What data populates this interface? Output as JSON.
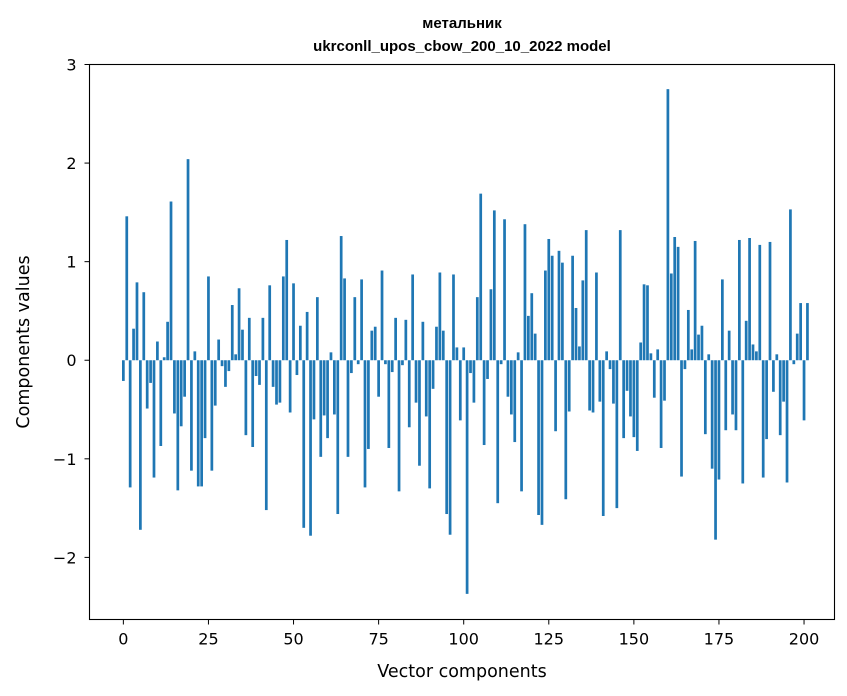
{
  "chart_data": {
    "type": "bar",
    "title_lines": [
      "метальник",
      "ukrconll_upos_cbow_200_10_2022 model"
    ],
    "xlabel": "Vector components",
    "ylabel": "Components values",
    "xlim": [
      -9.95,
      208.95
    ],
    "ylim": [
      -2.63,
      3.0
    ],
    "xticks": [
      0,
      25,
      50,
      75,
      100,
      125,
      150,
      175,
      200
    ],
    "xtick_labels": [
      "0",
      "25",
      "50",
      "75",
      "100",
      "125",
      "150",
      "175",
      "200"
    ],
    "yticks": [
      -2,
      -1,
      0,
      1,
      2,
      3
    ],
    "ytick_labels": [
      "−2",
      "−1",
      "0",
      "1",
      "2",
      "3"
    ],
    "grid": false,
    "bar_color": "#1f77b4",
    "x_start": 0,
    "values": [
      -0.21,
      1.46,
      -1.29,
      0.32,
      0.79,
      -1.72,
      0.69,
      -0.49,
      -0.23,
      -1.19,
      0.19,
      -0.87,
      0.03,
      0.39,
      1.61,
      -0.54,
      -1.32,
      -0.67,
      -0.37,
      2.04,
      -1.12,
      0.09,
      -1.28,
      -1.28,
      -0.79,
      0.85,
      -1.12,
      -0.46,
      0.21,
      -0.06,
      -0.27,
      -0.11,
      0.56,
      0.06,
      0.73,
      0.31,
      -0.76,
      0.43,
      -0.88,
      -0.16,
      -0.25,
      0.43,
      -1.52,
      0.76,
      -0.27,
      -0.45,
      -0.43,
      0.85,
      1.22,
      -0.53,
      0.78,
      -0.15,
      0.35,
      -1.7,
      0.49,
      -1.78,
      -0.6,
      0.64,
      -0.98,
      -0.56,
      -0.79,
      0.08,
      -0.55,
      -1.56,
      1.26,
      0.83,
      -0.98,
      -0.13,
      0.64,
      -0.04,
      0.82,
      -1.29,
      -0.9,
      0.3,
      0.34,
      -0.37,
      0.91,
      -0.04,
      -0.89,
      -0.12,
      0.43,
      -1.33,
      -0.05,
      0.41,
      -0.68,
      0.87,
      -0.43,
      -1.07,
      0.39,
      -0.57,
      -1.3,
      -0.29,
      0.34,
      0.89,
      0.3,
      -1.56,
      -1.77,
      0.87,
      0.13,
      -0.61,
      0.13,
      -2.37,
      -0.13,
      -0.43,
      0.64,
      1.69,
      -0.86,
      -0.19,
      0.72,
      1.52,
      -1.45,
      -0.04,
      1.43,
      -0.37,
      -0.55,
      -0.83,
      0.08,
      -1.33,
      1.38,
      0.45,
      0.68,
      0.27,
      -1.57,
      -1.67,
      0.91,
      1.23,
      1.06,
      -0.72,
      1.11,
      0.99,
      -1.41,
      -0.52,
      1.06,
      0.53,
      0.14,
      0.81,
      1.32,
      -0.51,
      -0.53,
      0.89,
      -0.42,
      -1.58,
      0.09,
      -0.09,
      -0.44,
      -1.5,
      1.32,
      -0.79,
      -0.31,
      -0.57,
      -0.78,
      -0.92,
      0.18,
      0.77,
      0.76,
      0.07,
      -0.38,
      0.11,
      -0.89,
      -0.41,
      2.75,
      0.88,
      1.25,
      1.15,
      -1.18,
      -0.09,
      0.51,
      0.11,
      1.21,
      0.26,
      0.35,
      -0.75,
      0.06,
      -1.1,
      -1.82,
      -1.21,
      0.82,
      -0.71,
      0.3,
      -0.55,
      -0.71,
      1.22,
      -1.25,
      0.4,
      1.24,
      0.16,
      0.09,
      1.17,
      -1.19,
      -0.8,
      1.2,
      -0.32,
      0.06,
      -0.76,
      -0.42,
      -1.24,
      1.53,
      -0.04,
      0.27,
      0.58,
      -0.61,
      0.58
    ]
  }
}
